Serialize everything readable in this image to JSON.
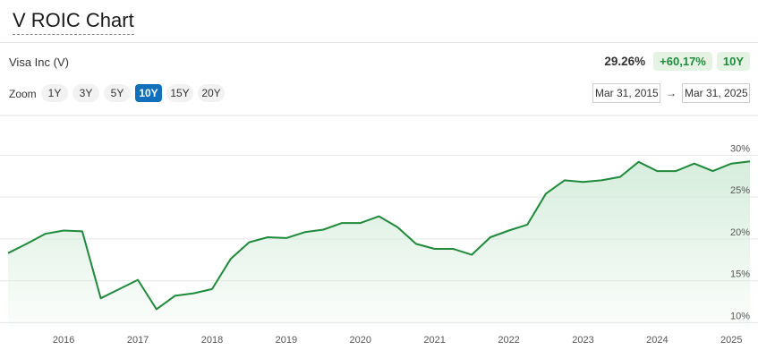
{
  "header": {
    "title": "V ROIC Chart"
  },
  "summary": {
    "company": "Visa Inc (V)",
    "current_value": "29.26%",
    "change": "+60,17%",
    "period": "10Y"
  },
  "zoom": {
    "label": "Zoom",
    "buttons": [
      "1Y",
      "3Y",
      "5Y",
      "10Y",
      "15Y",
      "20Y"
    ],
    "active": "10Y"
  },
  "range": {
    "from": "Mar 31, 2015",
    "to": "Mar 31, 2025",
    "arrow": "→"
  },
  "colors": {
    "line": "#1e8a3a",
    "area_top": "#cfead6",
    "active_zoom": "#1170b9",
    "badge_bg": "#e5f3e5"
  },
  "chart_data": {
    "type": "area",
    "title": "V ROIC Chart",
    "xlabel": "",
    "ylabel": "",
    "x_range": [
      2015.25,
      2025.25
    ],
    "ylim": [
      9.5,
      31
    ],
    "yticks": [
      10,
      15,
      20,
      25,
      30
    ],
    "ytick_labels": [
      "10%",
      "15%",
      "20%",
      "25%",
      "30%"
    ],
    "xticks": [
      2016,
      2017,
      2018,
      2019,
      2020,
      2021,
      2022,
      2023,
      2024,
      2025
    ],
    "xtick_labels": [
      "2016",
      "2017",
      "2018",
      "2019",
      "2020",
      "2021",
      "2022",
      "2023",
      "2024",
      "2025"
    ],
    "grid": true,
    "series": [
      {
        "x": [
          2015.25,
          2015.5,
          2015.75,
          2016.0,
          2016.25,
          2016.5,
          2016.75,
          2017.0,
          2017.25,
          2017.5,
          2017.75,
          2018.0,
          2018.25,
          2018.5,
          2018.75,
          2019.0,
          2019.25,
          2019.5,
          2019.75,
          2020.0,
          2020.25,
          2020.5,
          2020.75,
          2021.0,
          2021.25,
          2021.5,
          2021.75,
          2022.0,
          2022.25,
          2022.5,
          2022.75,
          2023.0,
          2023.25,
          2023.5,
          2023.75,
          2024.0,
          2024.25,
          2024.5,
          2024.75,
          2025.0,
          2025.25
        ],
        "y": [
          18.3,
          19.4,
          20.6,
          21.0,
          20.9,
          12.9,
          14.0,
          15.1,
          11.6,
          13.2,
          13.5,
          14.0,
          17.6,
          19.6,
          20.2,
          20.1,
          20.8,
          21.1,
          21.9,
          21.9,
          22.7,
          21.4,
          19.4,
          18.8,
          18.8,
          18.1,
          20.2,
          21.0,
          21.7,
          25.4,
          27.0,
          26.8,
          27.0,
          27.4,
          29.2,
          28.1,
          28.1,
          29.0,
          28.1,
          29.0,
          29.26
        ]
      }
    ]
  }
}
